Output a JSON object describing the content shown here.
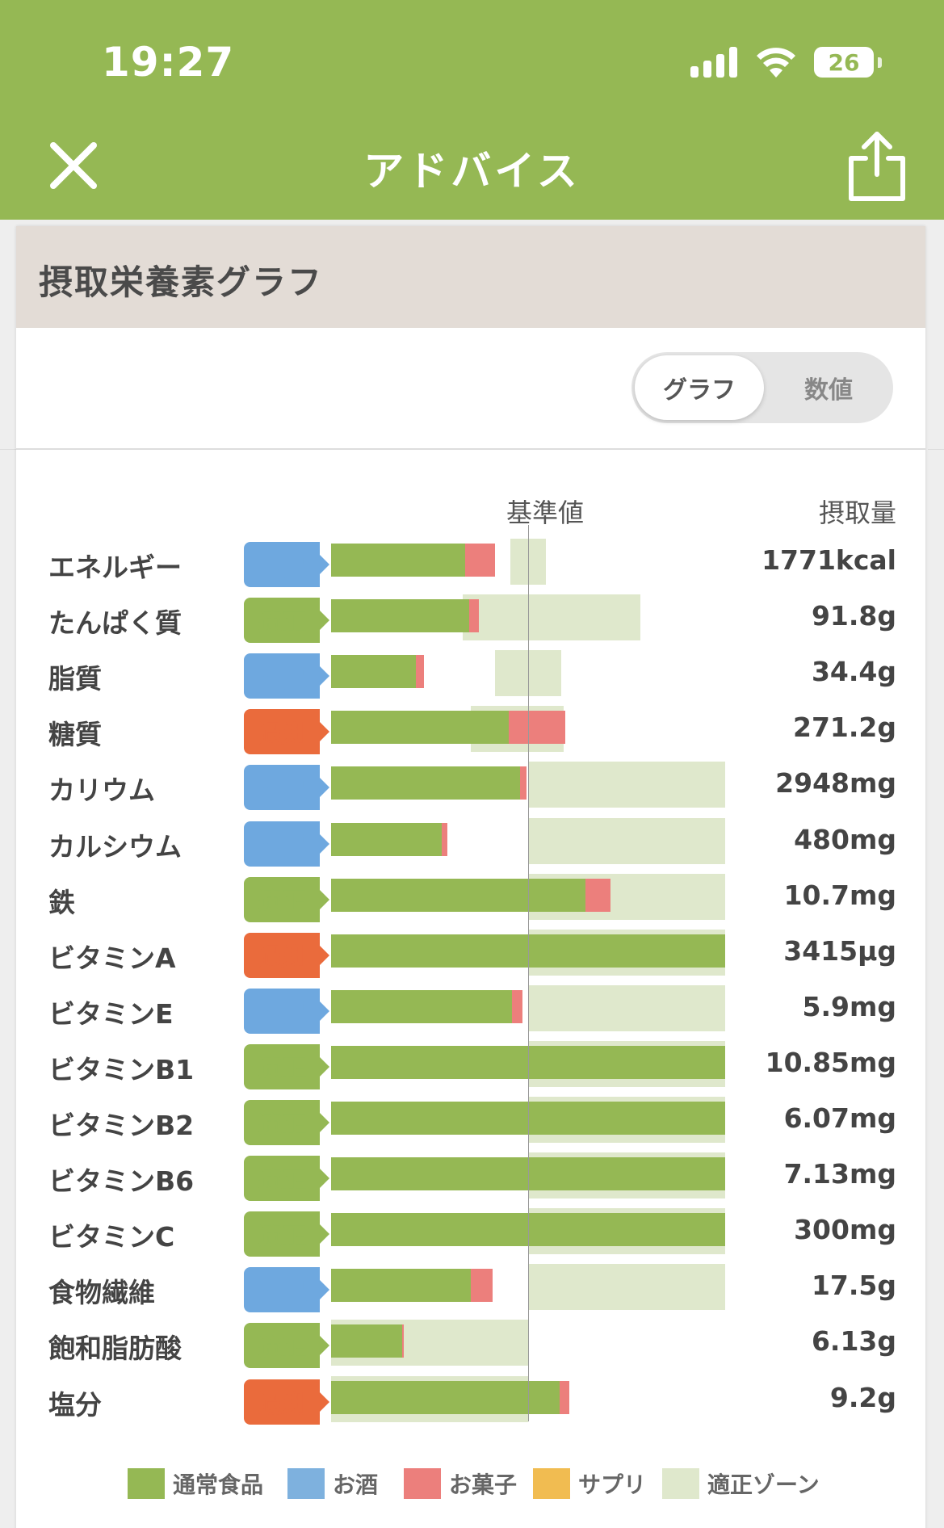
{
  "status_bar": {
    "time": "19:27",
    "battery": "26"
  },
  "nav": {
    "title": "アドバイス",
    "close_icon": "close-icon",
    "share_icon": "share-icon"
  },
  "card": {
    "title": "摂取栄養素グラフ"
  },
  "toggle": {
    "graph": "グラフ",
    "values": "数値",
    "selected": "グラフ"
  },
  "columns": {
    "standard": "基準値",
    "intake": "摂取量"
  },
  "colors": {
    "header_bg": "#95b854",
    "normal_food": "#95b854",
    "alcohol": "#7eb1de",
    "sweets": "#ec7f7c",
    "supplement": "#f1bc51",
    "proper_zone": "#dfe8cc",
    "status_deficient": "#6ea8df",
    "status_proper": "#95b854",
    "status_excess": "#ea6b3c"
  },
  "chart_data": {
    "type": "bar",
    "description_axis": "percent of standard value (100 = 基準値)",
    "series": [
      {
        "name": "通常食品"
      },
      {
        "name": "お菓子"
      },
      {
        "name": "適正ゾーン"
      }
    ],
    "rows": [
      {
        "name": "エネルギー",
        "status": "不足",
        "status_key": "deficient",
        "amount": "1771kcal",
        "food": 68,
        "sweets": 15,
        "zone": [
          91,
          109
        ]
      },
      {
        "name": "たんぱく質",
        "status": "適正",
        "status_key": "proper",
        "amount": "91.8g",
        "food": 70,
        "sweets": 5,
        "zone": [
          67,
          157
        ]
      },
      {
        "name": "脂質",
        "status": "不足",
        "status_key": "deficient",
        "amount": "34.4g",
        "food": 43,
        "sweets": 4,
        "zone": [
          83,
          117
        ]
      },
      {
        "name": "糖質",
        "status": "過剰",
        "status_key": "excess",
        "amount": "271.2g",
        "food": 90,
        "sweets": 29,
        "zone": [
          71,
          118
        ]
      },
      {
        "name": "カリウム",
        "status": "不足",
        "status_key": "deficient",
        "amount": "2948mg",
        "food": 96,
        "sweets": 3,
        "zone": [
          100,
          200
        ]
      },
      {
        "name": "カルシウム",
        "status": "不足",
        "status_key": "deficient",
        "amount": "480mg",
        "food": 56,
        "sweets": 3,
        "zone": [
          100,
          200
        ]
      },
      {
        "name": "鉄",
        "status": "適正",
        "status_key": "proper",
        "amount": "10.7mg",
        "food": 129,
        "sweets": 13,
        "zone": [
          100,
          200
        ]
      },
      {
        "name": "ビタミンA",
        "status": "過剰",
        "status_key": "excess",
        "amount": "3415μg",
        "food": 200,
        "sweets": 0,
        "zone": [
          100,
          200
        ]
      },
      {
        "name": "ビタミンE",
        "status": "不足",
        "status_key": "deficient",
        "amount": "5.9mg",
        "food": 92,
        "sweets": 5,
        "zone": [
          100,
          200
        ]
      },
      {
        "name": "ビタミンB1",
        "status": "適正",
        "status_key": "proper",
        "amount": "10.85mg",
        "food": 200,
        "sweets": 0,
        "zone": [
          100,
          200
        ]
      },
      {
        "name": "ビタミンB2",
        "status": "適正",
        "status_key": "proper",
        "amount": "6.07mg",
        "food": 200,
        "sweets": 0,
        "zone": [
          100,
          200
        ]
      },
      {
        "name": "ビタミンB6",
        "status": "適正",
        "status_key": "proper",
        "amount": "7.13mg",
        "food": 200,
        "sweets": 0,
        "zone": [
          100,
          200
        ]
      },
      {
        "name": "ビタミンC",
        "status": "適正",
        "status_key": "proper",
        "amount": "300mg",
        "food": 200,
        "sweets": 0,
        "zone": [
          100,
          200
        ]
      },
      {
        "name": "食物繊維",
        "status": "不足",
        "status_key": "deficient",
        "amount": "17.5g",
        "food": 71,
        "sweets": 11,
        "zone": [
          100,
          200
        ]
      },
      {
        "name": "飽和脂肪酸",
        "status": "適正",
        "status_key": "proper",
        "amount": "6.13g",
        "food": 36,
        "sweets": 1,
        "zone": [
          0,
          100
        ]
      },
      {
        "name": "塩分",
        "status": "過剰",
        "status_key": "excess",
        "amount": "9.2g",
        "food": 116,
        "sweets": 5,
        "zone": [
          0,
          100
        ]
      }
    ]
  },
  "legend": [
    {
      "label": "通常食品",
      "color": "#95b854"
    },
    {
      "label": "お酒",
      "color": "#7eb1de"
    },
    {
      "label": "お菓子",
      "color": "#ec7f7c"
    },
    {
      "label": "サプリ",
      "color": "#f1bc51"
    },
    {
      "label": "適正ゾーン",
      "color": "#dfe8cc"
    }
  ]
}
